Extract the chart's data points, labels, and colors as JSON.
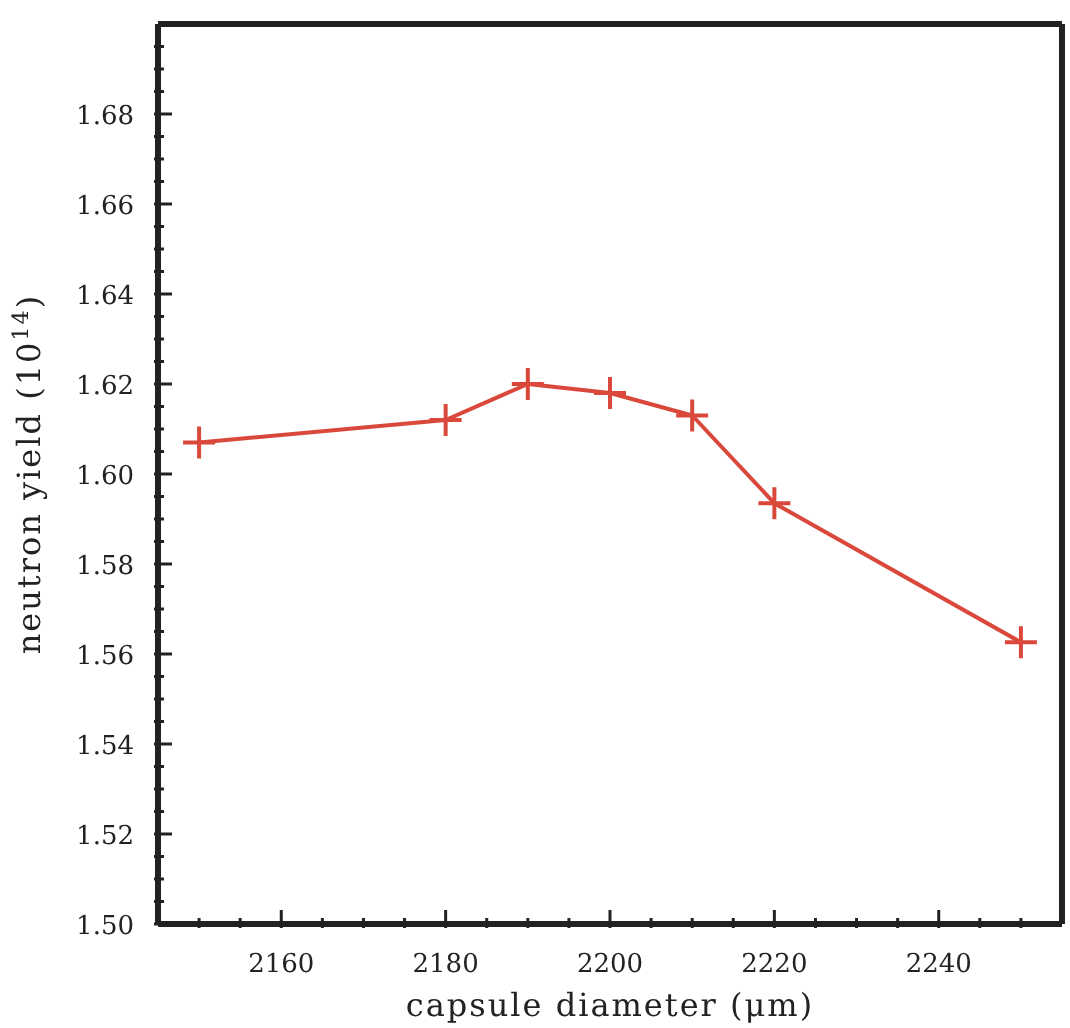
{
  "chart_data": {
    "type": "line",
    "xlabel": "capsule diameter (μm)",
    "ylabel": "neutron yield (10$^{14}$)",
    "x": [
      2150,
      2180,
      2190,
      2200,
      2210,
      2220,
      2250
    ],
    "series": [
      {
        "color": "#d9483b",
        "values": [
          1.607,
          1.612,
          1.62,
          1.618,
          1.613,
          1.5935,
          1.5626
        ]
      }
    ],
    "xlim": [
      2145,
      2255
    ],
    "xticks": [
      {
        "value": 2150,
        "label": null
      },
      {
        "value": 2155,
        "label": null
      },
      2160,
      {
        "value": 2165,
        "label": null
      },
      {
        "value": 2170,
        "label": null
      },
      {
        "value": 2175,
        "label": null
      },
      2180,
      {
        "value": 2185,
        "label": null
      },
      {
        "value": 2190,
        "label": null
      },
      {
        "value": 2195,
        "label": null
      },
      2200,
      {
        "value": 2205,
        "label": null
      },
      {
        "value": 2210,
        "label": null
      },
      {
        "value": 2215,
        "label": null
      },
      2220,
      {
        "value": 2225,
        "label": null
      },
      {
        "value": 2230,
        "label": null
      },
      {
        "value": 2235,
        "label": null
      },
      2240,
      {
        "value": 2245,
        "label": null
      },
      {
        "value": 2250,
        "label": null
      }
    ],
    "ylim": [
      1.5,
      1.7
    ],
    "yticks": [
      {
        "value": 1.5,
        "label": "1.50"
      },
      {
        "value": 1.505,
        "label": null
      },
      {
        "value": 1.51,
        "label": null
      },
      {
        "value": 1.515,
        "label": null
      },
      {
        "value": 1.52,
        "label": "1.52"
      },
      {
        "value": 1.525,
        "label": null
      },
      {
        "value": 1.53,
        "label": null
      },
      {
        "value": 1.535,
        "label": null
      },
      {
        "value": 1.54,
        "label": "1.54"
      },
      {
        "value": 1.545,
        "label": null
      },
      {
        "value": 1.55,
        "label": null
      },
      {
        "value": 1.555,
        "label": null
      },
      {
        "value": 1.56,
        "label": "1.56"
      },
      {
        "value": 1.565,
        "label": null
      },
      {
        "value": 1.57,
        "label": null
      },
      {
        "value": 1.575,
        "label": null
      },
      {
        "value": 1.58,
        "label": "1.58"
      },
      {
        "value": 1.585,
        "label": null
      },
      {
        "value": 1.59,
        "label": null
      },
      {
        "value": 1.595,
        "label": null
      },
      {
        "value": 1.6,
        "label": "1.60"
      },
      {
        "value": 1.605,
        "label": null
      },
      {
        "value": 1.61,
        "label": null
      },
      {
        "value": 1.615,
        "label": null
      },
      {
        "value": 1.62,
        "label": "1.62"
      },
      {
        "value": 1.625,
        "label": null
      },
      {
        "value": 1.63,
        "label": null
      },
      {
        "value": 1.635,
        "label": null
      },
      {
        "value": 1.64,
        "label": "1.64"
      },
      {
        "value": 1.645,
        "label": null
      },
      {
        "value": 1.65,
        "label": null
      },
      {
        "value": 1.655,
        "label": null
      },
      {
        "value": 1.66,
        "label": "1.66"
      },
      {
        "value": 1.665,
        "label": null
      },
      {
        "value": 1.67,
        "label": null
      },
      {
        "value": 1.675,
        "label": null
      },
      {
        "value": 1.68,
        "label": "1.68"
      },
      {
        "value": 1.685,
        "label": null
      },
      {
        "value": 1.69,
        "label": null
      },
      {
        "value": 1.695,
        "label": null
      }
    ],
    "grid": false,
    "legend": false,
    "marker": "cross",
    "line_style": "solid"
  }
}
